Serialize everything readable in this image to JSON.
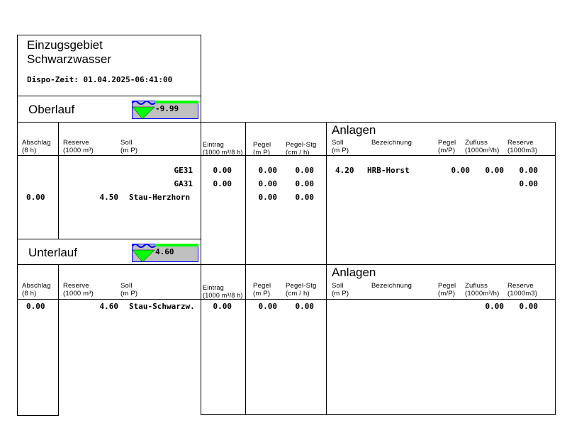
{
  "header": {
    "title_line1": "Einzugsgebiet",
    "title_line2": "Schwarzwasser",
    "dispo_zeit": "Dispo-Zeit: 01.04.2025-06:41:00"
  },
  "colors": {
    "gauge_fill": "#c0c0c0",
    "gauge_border": "#0000ff",
    "water_level": "#00ff00",
    "wave": "#0000ff"
  },
  "columns": {
    "abschlag": [
      "Abschlag",
      "(8 h)"
    ],
    "reserve": [
      "Reserve",
      "(1000 m³)"
    ],
    "soll": [
      "Soll",
      "(m P)"
    ],
    "eintrag": [
      "Eintrag",
      "(1000 m³/8 h)"
    ],
    "pegel": [
      "Pegel",
      "(m P)"
    ],
    "pegel_stg": [
      "Pegel-Stg",
      "(cm / h)"
    ]
  },
  "anlagen_columns": {
    "title": "Anlagen",
    "soll": [
      "Soll",
      "(m P)"
    ],
    "bezeichnung": "Bezeichnung",
    "pegel": [
      "Pegel",
      "(m/P)"
    ],
    "zufluss": [
      "Zufluss",
      "(1000m³/h)"
    ],
    "reserve": [
      "Reserve",
      "(1000m3)"
    ]
  },
  "oberlauf": {
    "label": "Oberlauf",
    "gauge_value": "-9.99",
    "abschlag": "0.00",
    "rows": [
      {
        "soll": "",
        "name": "GE31",
        "eintrag": "0.00",
        "pegel": "0.00",
        "pegel_stg": "0.00"
      },
      {
        "soll": "",
        "name": "GA31",
        "eintrag": "0.00",
        "pegel": "0.00",
        "pegel_stg": "0.00"
      },
      {
        "soll": "4.50",
        "name": "Stau-Herzhorn",
        "eintrag": "",
        "pegel": "0.00",
        "pegel_stg": "0.00"
      }
    ],
    "anlagen": [
      {
        "soll": "4.20",
        "name": "HRB-Horst",
        "pegel": "0.00",
        "zufluss": "0.00",
        "reserve": "0.00"
      },
      {
        "soll": "",
        "name": "",
        "pegel": "",
        "zufluss": "",
        "reserve": "0.00"
      }
    ]
  },
  "unterlauf": {
    "label": "Unterlauf",
    "gauge_value": "4.60",
    "abschlag": "0.00",
    "rows": [
      {
        "soll": "4.60",
        "name": "Stau-Schwarzw.",
        "eintrag": "0.00",
        "pegel": "0.00",
        "pegel_stg": "0.00"
      }
    ],
    "anlagen": [
      {
        "zufluss": "0.00",
        "reserve": "0.00"
      }
    ]
  }
}
